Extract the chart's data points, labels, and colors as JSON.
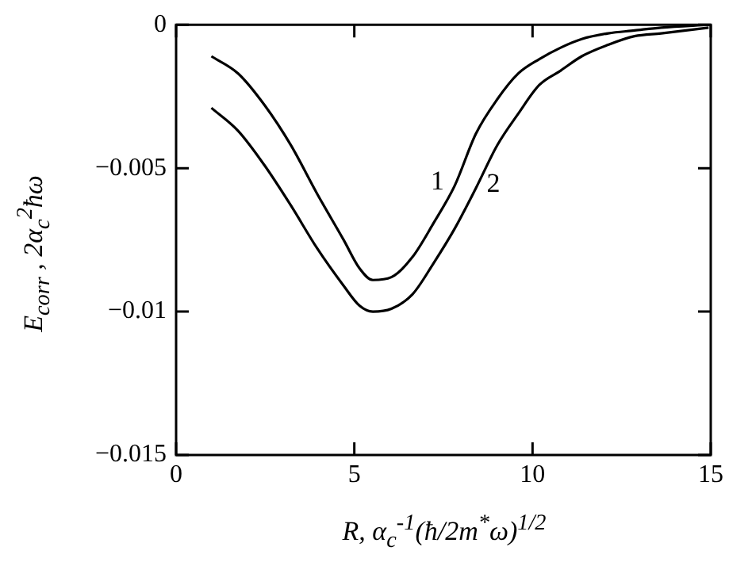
{
  "chart_data": {
    "type": "line",
    "xlabel": "R,  α$_{c}$$^{-1}$(ħ/2m$^{*}$ω)$^{1/2}$",
    "ylabel": "E$_{corr}$ ,  2α$_{c}$$^{2}$ħω",
    "xlim": [
      0,
      15
    ],
    "xticks": [
      0,
      5,
      10,
      15
    ],
    "ylim": [
      -0.015,
      0
    ],
    "yticks": [
      -0.015,
      -0.01,
      -0.005,
      0
    ],
    "grid": false,
    "legend": false,
    "marker": "none",
    "line_style": "solid",
    "series": [
      {
        "name": "1",
        "color": "#000000",
        "x": [
          0.99,
          1.74,
          2.48,
          3.22,
          3.96,
          4.7,
          5.15,
          5.52,
          6.04,
          6.63,
          7.23,
          7.82,
          8.41,
          9.01,
          9.6,
          10.19,
          10.79,
          11.38,
          12.12,
          12.86,
          13.61,
          14.94
        ],
        "values": [
          -0.0011,
          -0.0017,
          -0.0028,
          -0.0042,
          -0.0059,
          -0.0075,
          -0.0085,
          -0.0089,
          -0.0088,
          -0.0081,
          -0.0069,
          -0.0056,
          -0.0038,
          -0.0026,
          -0.0017,
          -0.0012,
          -0.0008,
          -0.0005,
          -0.0003,
          -0.0002,
          -0.0001,
          0
        ]
      },
      {
        "name": "2",
        "color": "#000000",
        "x": [
          0.99,
          1.74,
          2.48,
          3.22,
          3.96,
          4.7,
          5.15,
          5.52,
          6.04,
          6.63,
          7.23,
          7.82,
          8.41,
          9.01,
          9.6,
          10.19,
          10.79,
          11.38,
          12.12,
          12.86,
          13.61,
          14.94
        ],
        "values": [
          -0.0029,
          -0.0037,
          -0.0049,
          -0.0063,
          -0.0078,
          -0.0091,
          -0.0098,
          -0.01,
          -0.0099,
          -0.0094,
          -0.0083,
          -0.0071,
          -0.0057,
          -0.0042,
          -0.0031,
          -0.0021,
          -0.0016,
          -0.0011,
          -0.0007,
          -0.0004,
          -0.0003,
          -0.0001
        ]
      }
    ]
  }
}
